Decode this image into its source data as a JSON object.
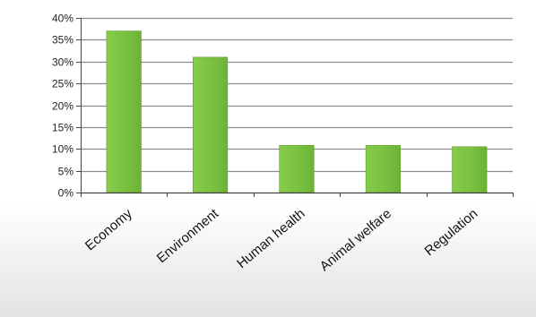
{
  "chart_data": {
    "type": "bar",
    "title": "",
    "xlabel": "",
    "ylabel": "",
    "categories": [
      "Economy",
      "Environment",
      "Human health",
      "Animal welfare",
      "Regulation"
    ],
    "values": [
      0.37,
      0.31,
      0.108,
      0.108,
      0.105
    ],
    "ylim": [
      0,
      0.4
    ],
    "yticks": [
      0,
      0.05,
      0.1,
      0.15,
      0.2,
      0.25,
      0.3,
      0.35,
      0.4
    ],
    "ytick_labels": [
      "0%",
      "5%",
      "10%",
      "15%",
      "20%",
      "25%",
      "30%",
      "35%",
      "40%"
    ],
    "grid": true,
    "legend": "none",
    "colors": {
      "bar": "#7cc242",
      "bar_edge": "#5e9e2e",
      "grid": "#8c8c8c",
      "axis": "#444444",
      "background_fade": "#dcdcdc"
    }
  }
}
